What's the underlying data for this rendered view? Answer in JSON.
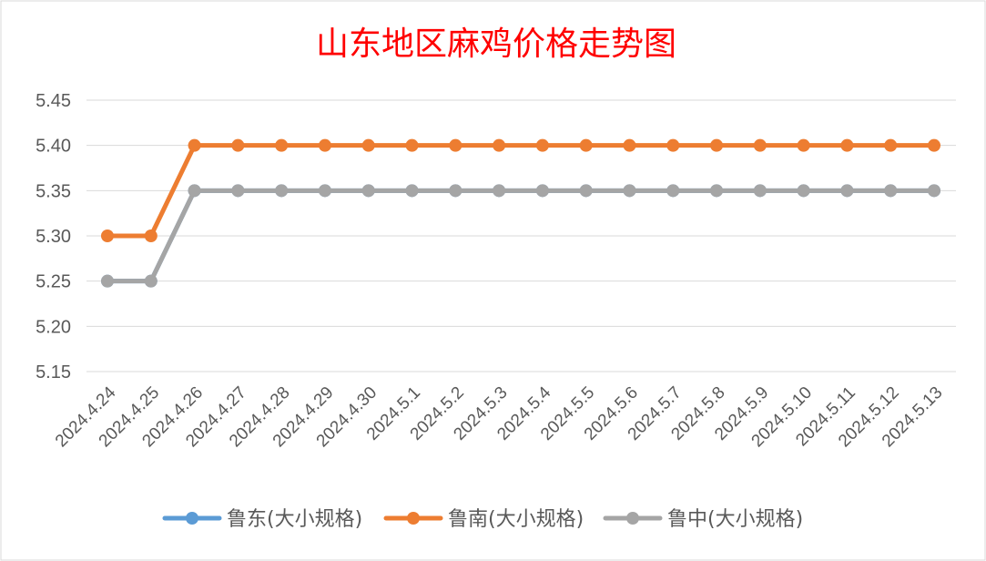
{
  "chart_data": {
    "type": "line",
    "title": "山东地区麻鸡价格走势图",
    "xlabel": "",
    "ylabel": "",
    "ylim": [
      5.15,
      5.45
    ],
    "yticks": [
      "5.15",
      "5.20",
      "5.25",
      "5.30",
      "5.35",
      "5.40",
      "5.45"
    ],
    "grid": true,
    "legend_position": "bottom",
    "categories": [
      "2024.4.24",
      "2024.4.25",
      "2024.4.26",
      "2024.4.27",
      "2024.4.28",
      "2024.4.29",
      "2024.4.30",
      "2024.5.1",
      "2024.5.2",
      "2024.5.3",
      "2024.5.4",
      "2024.5.5",
      "2024.5.6",
      "2024.5.7",
      "2024.5.8",
      "2024.5.9",
      "2024.5.10",
      "2024.5.11",
      "2024.5.12",
      "2024.5.13"
    ],
    "series": [
      {
        "name": "鲁东(大小规格)",
        "color": "#5b9bd5",
        "values": [
          5.25,
          5.25,
          5.35,
          5.35,
          5.35,
          5.35,
          5.35,
          5.35,
          5.35,
          5.35,
          5.35,
          5.35,
          5.35,
          5.35,
          5.35,
          5.35,
          5.35,
          5.35,
          5.35,
          5.35
        ]
      },
      {
        "name": "鲁南(大小规格)",
        "color": "#ed7d31",
        "values": [
          5.3,
          5.3,
          5.4,
          5.4,
          5.4,
          5.4,
          5.4,
          5.4,
          5.4,
          5.4,
          5.4,
          5.4,
          5.4,
          5.4,
          5.4,
          5.4,
          5.4,
          5.4,
          5.4,
          5.4
        ]
      },
      {
        "name": "鲁中(大小规格)",
        "color": "#a5a5a5",
        "values": [
          5.25,
          5.25,
          5.35,
          5.35,
          5.35,
          5.35,
          5.35,
          5.35,
          5.35,
          5.35,
          5.35,
          5.35,
          5.35,
          5.35,
          5.35,
          5.35,
          5.35,
          5.35,
          5.35,
          5.35
        ]
      }
    ]
  }
}
